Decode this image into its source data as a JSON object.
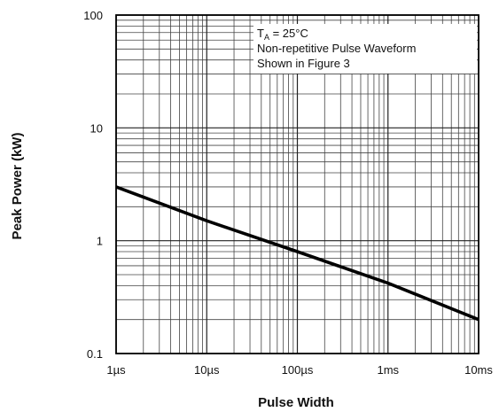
{
  "chart_data": {
    "type": "line",
    "title": "",
    "xlabel": "Pulse Width",
    "ylabel": "Peak Power (kW)",
    "x_scale": "log",
    "y_scale": "log",
    "x_unit": "seconds",
    "y_unit": "kW",
    "xlim": [
      1e-06,
      0.01
    ],
    "ylim": [
      0.1,
      100
    ],
    "x_ticks": [
      {
        "value": 1e-06,
        "label": "1µs"
      },
      {
        "value": 1e-05,
        "label": "10µs"
      },
      {
        "value": 0.0001,
        "label": "100µs"
      },
      {
        "value": 0.001,
        "label": "1ms"
      },
      {
        "value": 0.01,
        "label": "10ms"
      }
    ],
    "y_ticks": [
      {
        "value": 0.1,
        "label": "0.1"
      },
      {
        "value": 1,
        "label": "1"
      },
      {
        "value": 10,
        "label": "10"
      },
      {
        "value": 100,
        "label": "100"
      }
    ],
    "grid": true,
    "series": [
      {
        "x": [
          1e-06,
          1e-05,
          0.0001,
          0.001,
          0.01
        ],
        "y": [
          3.0,
          1.5,
          0.8,
          0.42,
          0.2
        ]
      }
    ],
    "annotation": {
      "ta_main": "T",
      "ta_sub": "A",
      "ta_value": " = 25°C",
      "line2": "Non-repetitive Pulse Waveform",
      "line3": "Shown in Figure 3"
    },
    "colors": {
      "line": "#000000",
      "grid": "#444444",
      "frame": "#000000"
    }
  }
}
